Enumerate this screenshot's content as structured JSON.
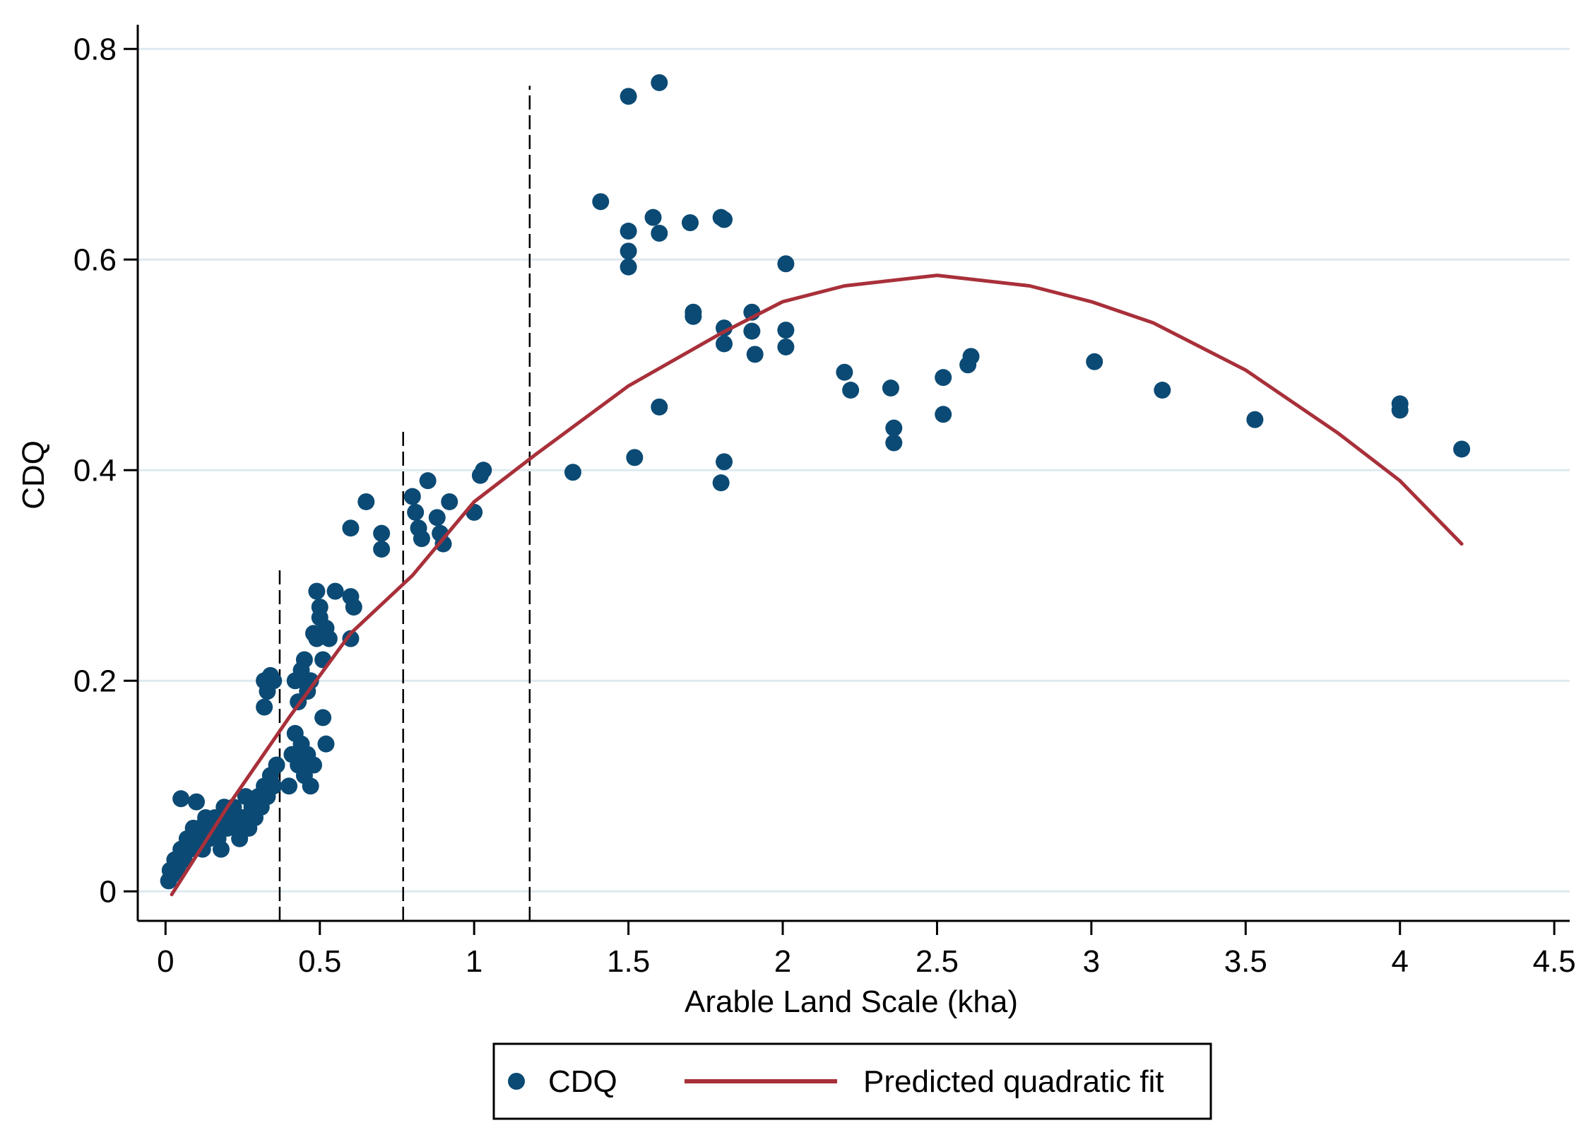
{
  "chart_data": {
    "type": "scatter",
    "title": "",
    "xlabel": "Arable Land Scale (kha)",
    "ylabel": "CDQ",
    "xlim": [
      -0.09,
      4.55
    ],
    "ylim": [
      -0.028,
      0.823
    ],
    "xticks": [
      0,
      0.5,
      1,
      1.5,
      2,
      2.5,
      3,
      3.5,
      4,
      4.5
    ],
    "xtick_labels": [
      "0",
      "0.5",
      "1",
      "1.5",
      "2",
      "2.5",
      "3",
      "3.5",
      "4",
      "4.5"
    ],
    "yticks": [
      0,
      0.2,
      0.4,
      0.6,
      0.8
    ],
    "ytick_labels": [
      "0",
      "0.2",
      "0.4",
      "0.6",
      "0.8"
    ],
    "grid": "horizontal",
    "legend_position": "bottom",
    "colors": {
      "points": "#0b4a74",
      "fit": "#a8303a",
      "grid": "#dde9f0",
      "axis": "#000000"
    },
    "series": [
      {
        "name": "CDQ",
        "kind": "scatter",
        "points": [
          [
            0.01,
            0.01
          ],
          [
            0.015,
            0.02
          ],
          [
            0.02,
            0.015
          ],
          [
            0.03,
            0.03
          ],
          [
            0.04,
            0.02
          ],
          [
            0.05,
            0.04
          ],
          [
            0.06,
            0.03
          ],
          [
            0.07,
            0.05
          ],
          [
            0.05,
            0.088
          ],
          [
            0.08,
            0.04
          ],
          [
            0.09,
            0.06
          ],
          [
            0.1,
            0.05
          ],
          [
            0.1,
            0.085
          ],
          [
            0.11,
            0.06
          ],
          [
            0.12,
            0.04
          ],
          [
            0.13,
            0.07
          ],
          [
            0.14,
            0.05
          ],
          [
            0.15,
            0.06
          ],
          [
            0.16,
            0.07
          ],
          [
            0.17,
            0.05
          ],
          [
            0.18,
            0.04
          ],
          [
            0.19,
            0.08
          ],
          [
            0.2,
            0.06
          ],
          [
            0.21,
            0.07
          ],
          [
            0.22,
            0.08
          ],
          [
            0.23,
            0.06
          ],
          [
            0.24,
            0.05
          ],
          [
            0.25,
            0.07
          ],
          [
            0.26,
            0.09
          ],
          [
            0.27,
            0.06
          ],
          [
            0.28,
            0.08
          ],
          [
            0.29,
            0.07
          ],
          [
            0.3,
            0.09
          ],
          [
            0.31,
            0.08
          ],
          [
            0.32,
            0.1
          ],
          [
            0.33,
            0.09
          ],
          [
            0.34,
            0.11
          ],
          [
            0.35,
            0.1
          ],
          [
            0.36,
            0.12
          ],
          [
            0.32,
            0.2
          ],
          [
            0.33,
            0.19
          ],
          [
            0.34,
            0.205
          ],
          [
            0.35,
            0.2
          ],
          [
            0.32,
            0.175
          ],
          [
            0.4,
            0.1
          ],
          [
            0.41,
            0.13
          ],
          [
            0.42,
            0.15
          ],
          [
            0.43,
            0.12
          ],
          [
            0.44,
            0.14
          ],
          [
            0.45,
            0.11
          ],
          [
            0.46,
            0.13
          ],
          [
            0.47,
            0.1
          ],
          [
            0.48,
            0.12
          ],
          [
            0.42,
            0.2
          ],
          [
            0.43,
            0.18
          ],
          [
            0.44,
            0.21
          ],
          [
            0.45,
            0.22
          ],
          [
            0.46,
            0.19
          ],
          [
            0.47,
            0.2
          ],
          [
            0.48,
            0.245
          ],
          [
            0.49,
            0.24
          ],
          [
            0.5,
            0.26
          ],
          [
            0.51,
            0.22
          ],
          [
            0.52,
            0.25
          ],
          [
            0.53,
            0.24
          ],
          [
            0.49,
            0.285
          ],
          [
            0.5,
            0.27
          ],
          [
            0.55,
            0.285
          ],
          [
            0.51,
            0.165
          ],
          [
            0.52,
            0.14
          ],
          [
            0.6,
            0.28
          ],
          [
            0.61,
            0.27
          ],
          [
            0.6,
            0.24
          ],
          [
            0.6,
            0.345
          ],
          [
            0.65,
            0.37
          ],
          [
            0.7,
            0.34
          ],
          [
            0.7,
            0.325
          ],
          [
            0.8,
            0.375
          ],
          [
            0.81,
            0.36
          ],
          [
            0.82,
            0.345
          ],
          [
            0.83,
            0.335
          ],
          [
            0.85,
            0.39
          ],
          [
            0.88,
            0.355
          ],
          [
            0.89,
            0.34
          ],
          [
            0.9,
            0.33
          ],
          [
            0.92,
            0.37
          ],
          [
            1.0,
            0.36
          ],
          [
            1.02,
            0.395
          ],
          [
            1.03,
            0.4
          ],
          [
            1.32,
            0.398
          ],
          [
            1.41,
            0.655
          ],
          [
            1.5,
            0.755
          ],
          [
            1.5,
            0.627
          ],
          [
            1.5,
            0.608
          ],
          [
            1.5,
            0.593
          ],
          [
            1.52,
            0.412
          ],
          [
            1.58,
            0.64
          ],
          [
            1.6,
            0.768
          ],
          [
            1.6,
            0.625
          ],
          [
            1.6,
            0.46
          ],
          [
            1.7,
            0.635
          ],
          [
            1.71,
            0.55
          ],
          [
            1.71,
            0.546
          ],
          [
            1.8,
            0.64
          ],
          [
            1.81,
            0.638
          ],
          [
            1.81,
            0.535
          ],
          [
            1.81,
            0.52
          ],
          [
            1.81,
            0.408
          ],
          [
            1.8,
            0.388
          ],
          [
            1.9,
            0.55
          ],
          [
            1.9,
            0.532
          ],
          [
            1.91,
            0.51
          ],
          [
            2.01,
            0.596
          ],
          [
            2.01,
            0.533
          ],
          [
            2.01,
            0.517
          ],
          [
            2.2,
            0.493
          ],
          [
            2.22,
            0.476
          ],
          [
            2.35,
            0.478
          ],
          [
            2.36,
            0.44
          ],
          [
            2.36,
            0.426
          ],
          [
            2.52,
            0.488
          ],
          [
            2.52,
            0.453
          ],
          [
            2.6,
            0.5
          ],
          [
            2.61,
            0.508
          ],
          [
            3.01,
            0.503
          ],
          [
            3.23,
            0.476
          ],
          [
            3.53,
            0.448
          ],
          [
            4.0,
            0.463
          ],
          [
            4.0,
            0.457
          ],
          [
            4.2,
            0.42
          ]
        ]
      },
      {
        "name": "Predicted quadratic fit",
        "kind": "line",
        "points": [
          [
            0.02,
            -0.003
          ],
          [
            0.2,
            0.08
          ],
          [
            0.4,
            0.165
          ],
          [
            0.6,
            0.245
          ],
          [
            0.8,
            0.3
          ],
          [
            1.0,
            0.37
          ],
          [
            1.2,
            0.415
          ],
          [
            1.5,
            0.48
          ],
          [
            1.8,
            0.53
          ],
          [
            2.0,
            0.56
          ],
          [
            2.2,
            0.575
          ],
          [
            2.5,
            0.585
          ],
          [
            2.8,
            0.575
          ],
          [
            3.0,
            0.56
          ],
          [
            3.2,
            0.54
          ],
          [
            3.5,
            0.495
          ],
          [
            3.8,
            0.435
          ],
          [
            4.0,
            0.39
          ],
          [
            4.2,
            0.33
          ]
        ]
      }
    ],
    "reference_lines_x": [
      {
        "x": 0.37,
        "ymax": 0.305
      },
      {
        "x": 0.77,
        "ymax": 0.44
      },
      {
        "x": 1.18,
        "ymax": 0.765
      }
    ]
  }
}
